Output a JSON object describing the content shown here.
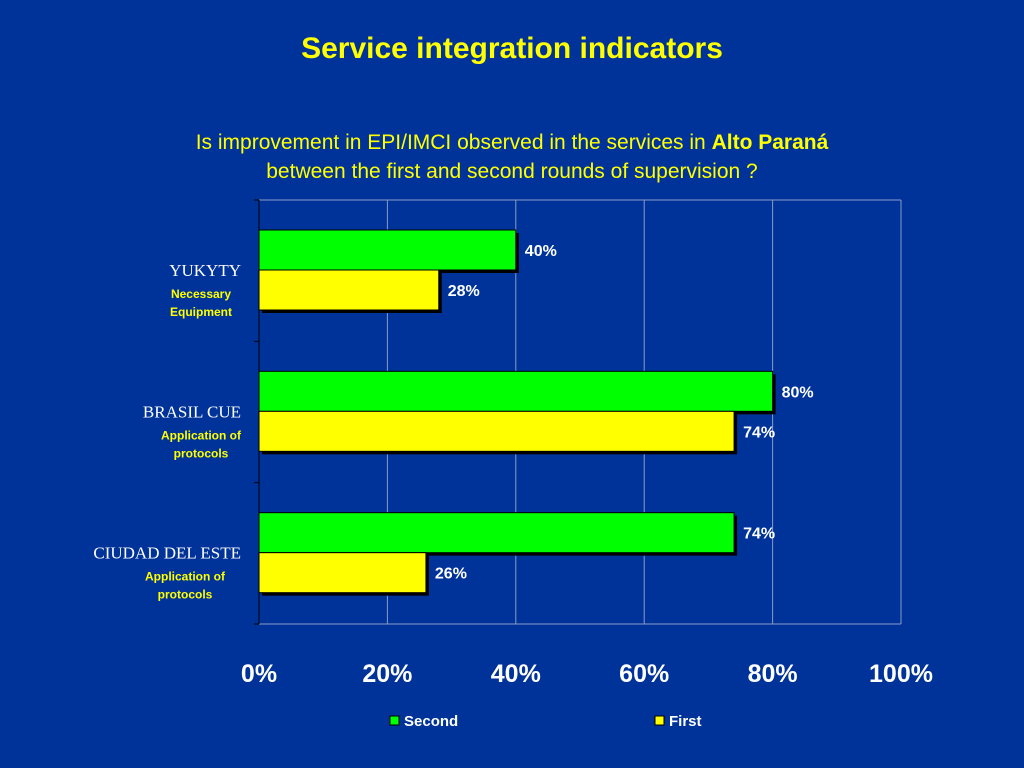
{
  "slide": {
    "title": "Service integration indicators",
    "subtitle_pre": "Is improvement  in  EPI/IMCI observed in the services in ",
    "subtitle_bold": "Alto Paraná",
    "subtitle_line2": "between the first and second rounds of supervision ?"
  },
  "chart_data": {
    "type": "bar",
    "orientation": "horizontal",
    "categories": [
      "YUKYTY",
      "BRASIL CUE",
      "CIUDAD DEL ESTE"
    ],
    "category_sublabels": [
      [
        "Necessary",
        "Equipment"
      ],
      [
        "Application of",
        "protocols"
      ],
      [
        "Application of",
        "protocols"
      ]
    ],
    "series": [
      {
        "name": "Second",
        "values": [
          40,
          80,
          74
        ],
        "labels": [
          "40%",
          "80%",
          "74%"
        ],
        "color": "#00FF00"
      },
      {
        "name": "First",
        "values": [
          28,
          74,
          26
        ],
        "labels": [
          "28%",
          "74%",
          "26%"
        ],
        "color": "#FFFF00"
      }
    ],
    "xlim": [
      0,
      100
    ],
    "xticks": [
      0,
      20,
      40,
      60,
      80,
      100
    ],
    "xtick_labels": [
      "0%",
      "20%",
      "40%",
      "60%",
      "80%",
      "100%"
    ],
    "grid": true,
    "legend_position": "bottom"
  },
  "colors": {
    "background": "#003399",
    "text_accent": "#FFFF00",
    "text": "#FFFFFF",
    "gridline": "#8A9AC8"
  }
}
